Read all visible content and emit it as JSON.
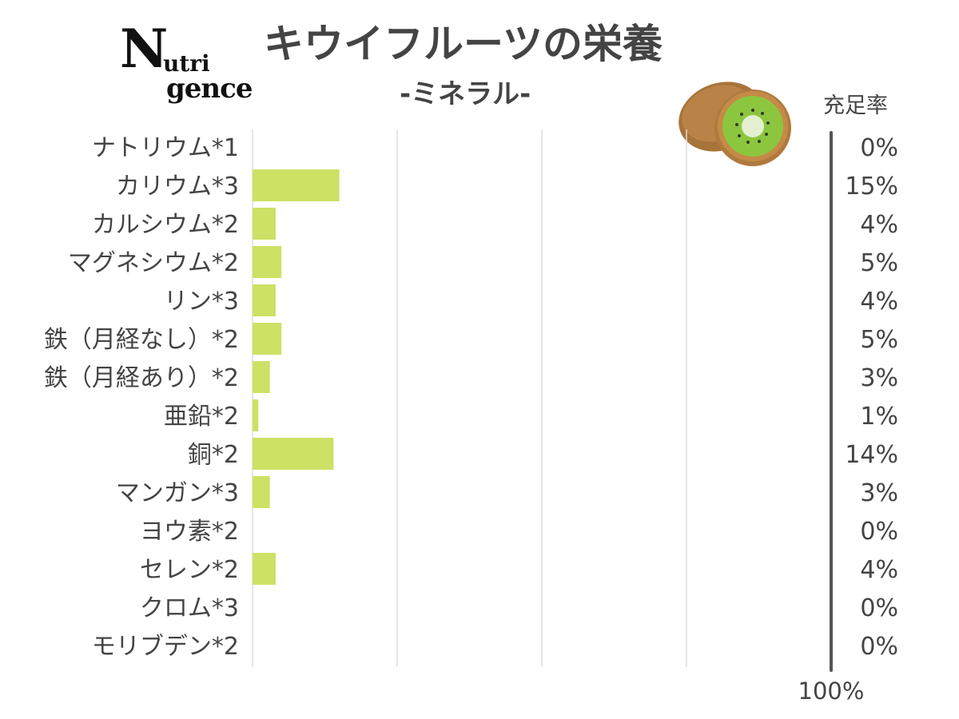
{
  "logo": {
    "line1": "N",
    "line2": "utri",
    "line3": "gence"
  },
  "title": "キウイフルーツの栄養",
  "subtitle": "-ミネラル-",
  "rate_header": "充足率",
  "icons": [
    "kiwi-icon"
  ],
  "colors": {
    "bar": "#cde165",
    "text": "#444444",
    "grid": "#dddddd",
    "rule": "#555555"
  },
  "chart_data": {
    "type": "bar",
    "orientation": "horizontal",
    "categories": [
      "ナトリウム*1",
      "カリウム*3",
      "カルシウム*2",
      "マグネシウム*2",
      "リン*3",
      "鉄（月経なし）*2",
      "鉄（月経あり）*2",
      "亜鉛*2",
      "銅*2",
      "マンガン*3",
      "ヨウ素*2",
      "セレン*2",
      "クロム*3",
      "モリブデン*2"
    ],
    "values": [
      0,
      15,
      4,
      5,
      4,
      5,
      3,
      1,
      14,
      3,
      0,
      4,
      0,
      0
    ],
    "value_labels": [
      "0%",
      "15%",
      "4%",
      "5%",
      "4%",
      "5%",
      "3%",
      "1%",
      "14%",
      "3%",
      "0%",
      "4%",
      "0%",
      "0%"
    ],
    "xlim": [
      0,
      100
    ],
    "x_max_label": "100%",
    "grid": true,
    "unit": "%"
  }
}
